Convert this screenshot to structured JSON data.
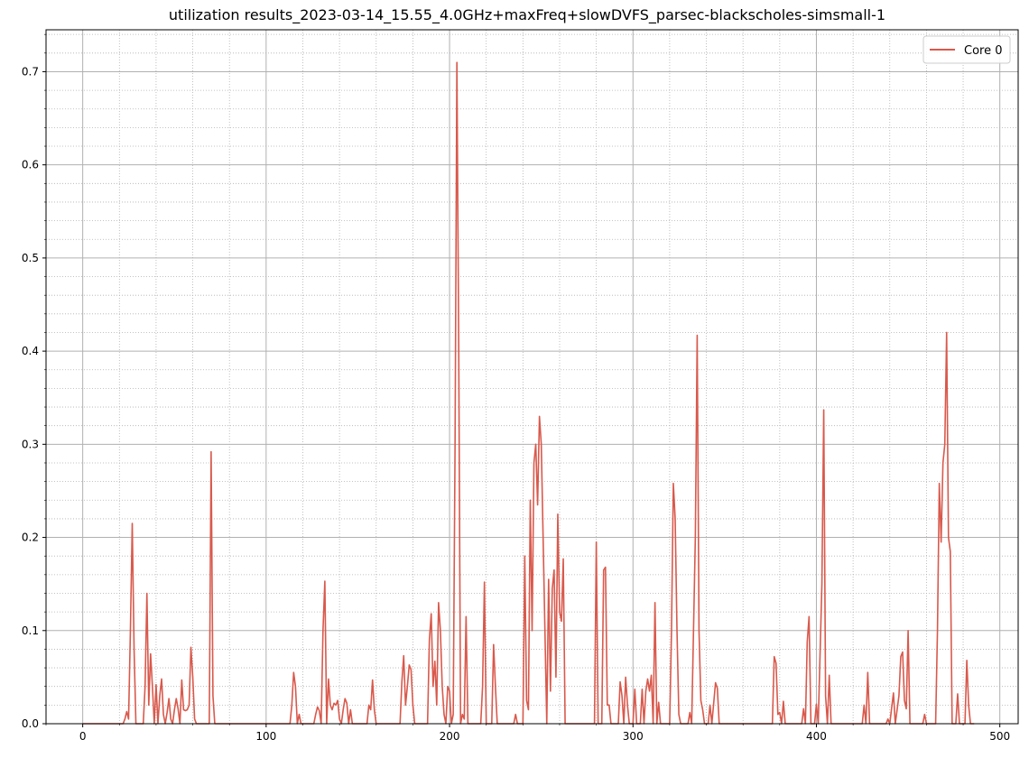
{
  "chart_data": {
    "type": "line",
    "title": "utilization results_2023-03-14_15.55_4.0GHz+maxFreq+slowDVFS_parsec-blackscholes-simsmall-1",
    "xlabel": "",
    "ylabel": "",
    "xlim": [
      -20,
      510
    ],
    "ylim": [
      0,
      0.745
    ],
    "xticks": [
      0,
      100,
      200,
      300,
      400,
      500
    ],
    "xtick_labels": [
      "0",
      "100",
      "200",
      "300",
      "400",
      "500"
    ],
    "yticks": [
      0,
      0.1,
      0.2,
      0.3,
      0.4,
      0.5,
      0.6,
      0.7
    ],
    "ytick_labels": [
      "0.0",
      "0.1",
      "0.2",
      "0.3",
      "0.4",
      "0.5",
      "0.6",
      "0.7"
    ],
    "grid": {
      "major": true,
      "minor": true
    },
    "legend_position": "top-right",
    "series": [
      {
        "name": "Core 0",
        "color": "#d9594c",
        "points": [
          [
            0,
            0
          ],
          [
            22,
            0
          ],
          [
            23,
            0.005
          ],
          [
            24,
            0.013
          ],
          [
            25,
            0.005
          ],
          [
            26,
            0.1
          ],
          [
            27,
            0.215
          ],
          [
            28,
            0.08
          ],
          [
            29,
            0
          ],
          [
            33,
            0
          ],
          [
            34,
            0.04
          ],
          [
            35,
            0.14
          ],
          [
            36,
            0.02
          ],
          [
            37,
            0.075
          ],
          [
            38,
            0.04
          ],
          [
            39,
            0
          ],
          [
            40,
            0.042
          ],
          [
            41,
            0
          ],
          [
            42,
            0.03
          ],
          [
            43,
            0.048
          ],
          [
            44,
            0.01
          ],
          [
            45,
            0
          ],
          [
            46,
            0.012
          ],
          [
            47,
            0.027
          ],
          [
            48,
            0.005
          ],
          [
            49,
            0
          ],
          [
            50,
            0.015
          ],
          [
            51,
            0.027
          ],
          [
            52,
            0.016
          ],
          [
            53,
            0
          ],
          [
            54,
            0.047
          ],
          [
            55,
            0.015
          ],
          [
            56,
            0.014
          ],
          [
            57,
            0.015
          ],
          [
            58,
            0.02
          ],
          [
            59,
            0.082
          ],
          [
            60,
            0.05
          ],
          [
            61,
            0.005
          ],
          [
            62,
            0
          ],
          [
            69,
            0
          ],
          [
            70,
            0.292
          ],
          [
            71,
            0.03
          ],
          [
            72,
            0
          ],
          [
            113,
            0
          ],
          [
            114,
            0.02
          ],
          [
            115,
            0.055
          ],
          [
            116,
            0.04
          ],
          [
            117,
            0
          ],
          [
            118,
            0.01
          ],
          [
            119,
            0
          ],
          [
            126,
            0
          ],
          [
            127,
            0.01
          ],
          [
            128,
            0.018
          ],
          [
            129,
            0.014
          ],
          [
            130,
            0
          ],
          [
            131,
            0.1
          ],
          [
            132,
            0.153
          ],
          [
            133,
            0
          ],
          [
            134,
            0.048
          ],
          [
            135,
            0.02
          ],
          [
            136,
            0.015
          ],
          [
            137,
            0.022
          ],
          [
            138,
            0.02
          ],
          [
            139,
            0.025
          ],
          [
            140,
            0.005
          ],
          [
            141,
            0
          ],
          [
            142,
            0.015
          ],
          [
            143,
            0.027
          ],
          [
            144,
            0.022
          ],
          [
            145,
            0
          ],
          [
            146,
            0.015
          ],
          [
            147,
            0
          ],
          [
            155,
            0
          ],
          [
            156,
            0.02
          ],
          [
            157,
            0.015
          ],
          [
            158,
            0.047
          ],
          [
            159,
            0.015
          ],
          [
            160,
            0
          ],
          [
            173,
            0
          ],
          [
            174,
            0.045
          ],
          [
            175,
            0.073
          ],
          [
            176,
            0.02
          ],
          [
            177,
            0.04
          ],
          [
            178,
            0.063
          ],
          [
            179,
            0.058
          ],
          [
            180,
            0.02
          ],
          [
            181,
            0
          ],
          [
            188,
            0
          ],
          [
            189,
            0.09
          ],
          [
            190,
            0.118
          ],
          [
            191,
            0.04
          ],
          [
            192,
            0.067
          ],
          [
            193,
            0.02
          ],
          [
            194,
            0.13
          ],
          [
            195,
            0.1
          ],
          [
            196,
            0.04
          ],
          [
            197,
            0.01
          ],
          [
            198,
            0
          ],
          [
            199,
            0.04
          ],
          [
            200,
            0.035
          ],
          [
            201,
            0
          ],
          [
            202,
            0.01
          ],
          [
            203,
            0.3
          ],
          [
            204,
            0.71
          ],
          [
            205,
            0.4
          ],
          [
            206,
            0
          ],
          [
            207,
            0.01
          ],
          [
            208,
            0.005
          ],
          [
            209,
            0.115
          ],
          [
            210,
            0
          ],
          [
            217,
            0
          ],
          [
            218,
            0.04
          ],
          [
            219,
            0.152
          ],
          [
            220,
            0
          ],
          [
            223,
            0
          ],
          [
            224,
            0.085
          ],
          [
            225,
            0.04
          ],
          [
            226,
            0
          ],
          [
            235,
            0
          ],
          [
            236,
            0.01
          ],
          [
            237,
            0
          ],
          [
            240,
            0
          ],
          [
            241,
            0.18
          ],
          [
            242,
            0.025
          ],
          [
            243,
            0.015
          ],
          [
            244,
            0.24
          ],
          [
            245,
            0.1
          ],
          [
            246,
            0.28
          ],
          [
            247,
            0.3
          ],
          [
            248,
            0.235
          ],
          [
            249,
            0.33
          ],
          [
            250,
            0.3
          ],
          [
            251,
            0.2
          ],
          [
            252,
            0.1
          ],
          [
            253,
            0
          ],
          [
            254,
            0.155
          ],
          [
            255,
            0.035
          ],
          [
            256,
            0.145
          ],
          [
            257,
            0.165
          ],
          [
            258,
            0.05
          ],
          [
            259,
            0.225
          ],
          [
            260,
            0.12
          ],
          [
            261,
            0.11
          ],
          [
            262,
            0.177
          ],
          [
            263,
            0
          ],
          [
            279,
            0
          ],
          [
            280,
            0.195
          ],
          [
            281,
            0
          ],
          [
            283,
            0
          ],
          [
            284,
            0.165
          ],
          [
            285,
            0.168
          ],
          [
            286,
            0.02
          ],
          [
            287,
            0.02
          ],
          [
            288,
            0
          ],
          [
            292,
            0
          ],
          [
            293,
            0.045
          ],
          [
            294,
            0.03
          ],
          [
            295,
            0
          ],
          [
            296,
            0.05
          ],
          [
            297,
            0.02
          ],
          [
            298,
            0
          ],
          [
            300,
            0
          ],
          [
            301,
            0.037
          ],
          [
            302,
            0
          ],
          [
            304,
            0
          ],
          [
            305,
            0.037
          ],
          [
            306,
            0
          ],
          [
            307,
            0.035
          ],
          [
            308,
            0.048
          ],
          [
            309,
            0.035
          ],
          [
            310,
            0.052
          ],
          [
            311,
            0
          ],
          [
            312,
            0.13
          ],
          [
            313,
            0
          ],
          [
            314,
            0.023
          ],
          [
            315,
            0
          ],
          [
            320,
            0
          ],
          [
            321,
            0.1
          ],
          [
            322,
            0.258
          ],
          [
            323,
            0.22
          ],
          [
            324,
            0.1
          ],
          [
            325,
            0.01
          ],
          [
            326,
            0
          ],
          [
            330,
            0
          ],
          [
            331,
            0.012
          ],
          [
            332,
            0
          ],
          [
            334,
            0.2
          ],
          [
            335,
            0.417
          ],
          [
            336,
            0.1
          ],
          [
            337,
            0.025
          ],
          [
            338,
            0.015
          ],
          [
            339,
            0
          ],
          [
            341,
            0
          ],
          [
            342,
            0.02
          ],
          [
            343,
            0
          ],
          [
            345,
            0.044
          ],
          [
            346,
            0.038
          ],
          [
            347,
            0
          ],
          [
            376,
            0
          ],
          [
            377,
            0.072
          ],
          [
            378,
            0.065
          ],
          [
            379,
            0.01
          ],
          [
            380,
            0.012
          ],
          [
            381,
            0
          ],
          [
            382,
            0.024
          ],
          [
            383,
            0
          ],
          [
            392,
            0
          ],
          [
            393,
            0.016
          ],
          [
            394,
            0
          ],
          [
            395,
            0.088
          ],
          [
            396,
            0.115
          ],
          [
            397,
            0
          ],
          [
            399,
            0
          ],
          [
            400,
            0.021
          ],
          [
            401,
            0
          ],
          [
            403,
            0.15
          ],
          [
            404,
            0.337
          ],
          [
            405,
            0.03
          ],
          [
            406,
            0
          ],
          [
            407,
            0.052
          ],
          [
            408,
            0
          ],
          [
            425,
            0
          ],
          [
            426,
            0.02
          ],
          [
            427,
            0
          ],
          [
            428,
            0.055
          ],
          [
            429,
            0
          ],
          [
            438,
            0
          ],
          [
            439,
            0.005
          ],
          [
            440,
            0
          ],
          [
            442,
            0.033
          ],
          [
            443,
            0
          ],
          [
            445,
            0.03
          ],
          [
            446,
            0.072
          ],
          [
            447,
            0.077
          ],
          [
            448,
            0.025
          ],
          [
            449,
            0.016
          ],
          [
            450,
            0.1
          ],
          [
            451,
            0
          ],
          [
            458,
            0
          ],
          [
            459,
            0.01
          ],
          [
            460,
            0
          ],
          [
            465,
            0
          ],
          [
            466,
            0.1
          ],
          [
            467,
            0.258
          ],
          [
            468,
            0.195
          ],
          [
            469,
            0.28
          ],
          [
            470,
            0.3
          ],
          [
            471,
            0.42
          ],
          [
            472,
            0.2
          ],
          [
            473,
            0.185
          ],
          [
            474,
            0
          ],
          [
            476,
            0
          ],
          [
            477,
            0.032
          ],
          [
            478,
            0
          ],
          [
            481,
            0
          ],
          [
            482,
            0.068
          ],
          [
            483,
            0.02
          ],
          [
            484,
            0
          ],
          [
            486,
            0
          ]
        ]
      }
    ]
  }
}
